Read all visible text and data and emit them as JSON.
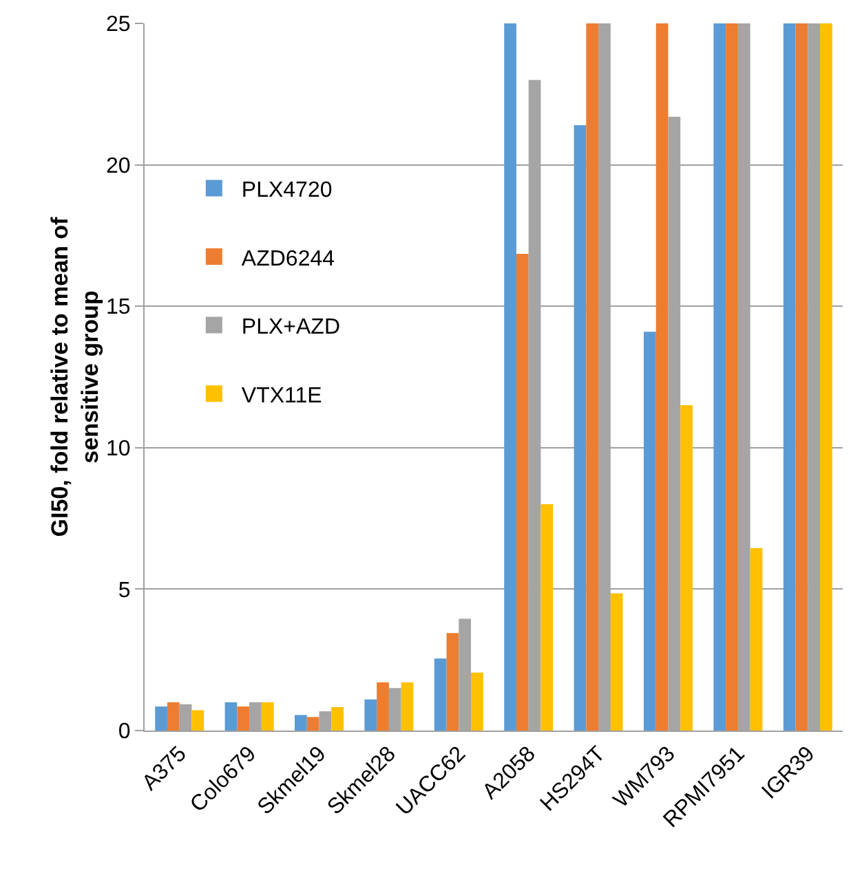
{
  "chart_data": {
    "type": "bar",
    "ylabel": "GI50, fold relative to mean of sensitive group",
    "categories": [
      "A375",
      "Colo679",
      "Skmel19",
      "Skmel28",
      "UACC62",
      "A2058",
      "HS294T",
      "WM793",
      "RPMI7951",
      "IGR39"
    ],
    "series": [
      {
        "name": "PLX4720",
        "color": "#5b9bd5",
        "values": [
          0.85,
          1.0,
          0.55,
          1.1,
          2.55,
          25,
          21.4,
          14.1,
          25,
          25
        ]
      },
      {
        "name": "AZD6244",
        "color": "#ed7d31",
        "values": [
          1.0,
          0.85,
          0.48,
          1.7,
          3.45,
          16.85,
          25,
          25,
          25,
          25
        ]
      },
      {
        "name": "PLX+AZD",
        "color": "#a5a5a5",
        "values": [
          0.93,
          1.0,
          0.68,
          1.5,
          3.95,
          23.0,
          25,
          21.7,
          25,
          25
        ]
      },
      {
        "name": "VTX11E",
        "color": "#ffc000",
        "values": [
          0.72,
          1.0,
          0.83,
          1.7,
          2.05,
          8.0,
          4.85,
          11.5,
          6.45,
          25
        ]
      }
    ],
    "ylim": [
      0,
      25
    ],
    "yticks": [
      0,
      5,
      10,
      15,
      20,
      25
    ],
    "grid": "y",
    "legend": "top left"
  }
}
